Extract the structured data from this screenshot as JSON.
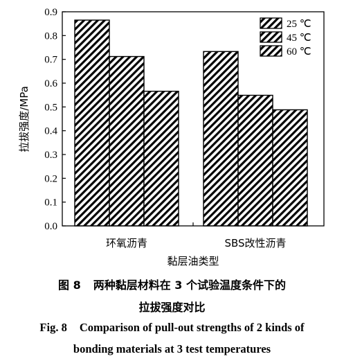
{
  "chart_data": {
    "type": "bar",
    "categories": [
      "环氧沥青",
      "SBS改性沥青"
    ],
    "series": [
      {
        "name": "25 ℃",
        "values": [
          0.865,
          0.733
        ]
      },
      {
        "name": "45 ℃",
        "values": [
          0.712,
          0.549
        ]
      },
      {
        "name": "60 ℃",
        "values": [
          0.566,
          0.488
        ]
      }
    ],
    "xlabel": "黏层油类型",
    "ylabel": "拉拔强度/MPa",
    "ylim": [
      0,
      0.9
    ],
    "yticks": [
      "0.0",
      "0.1",
      "0.2",
      "0.3",
      "0.4",
      "0.5",
      "0.6",
      "0.7",
      "0.8",
      "0.9"
    ],
    "legend_position": "top-right",
    "grid": false,
    "fill_pattern": "diagonal-hatch",
    "bar_color": "#000000"
  },
  "caption": {
    "zh_label": "图 8",
    "zh_line1": "两种黏层材料在 3 个试验温度条件下的",
    "zh_line2": "拉拔强度对比",
    "en_label": "Fig. 8",
    "en_line1": "Comparison of pull-out strengths of 2 kinds of",
    "en_line2": "bonding materials at 3 test temperatures"
  }
}
